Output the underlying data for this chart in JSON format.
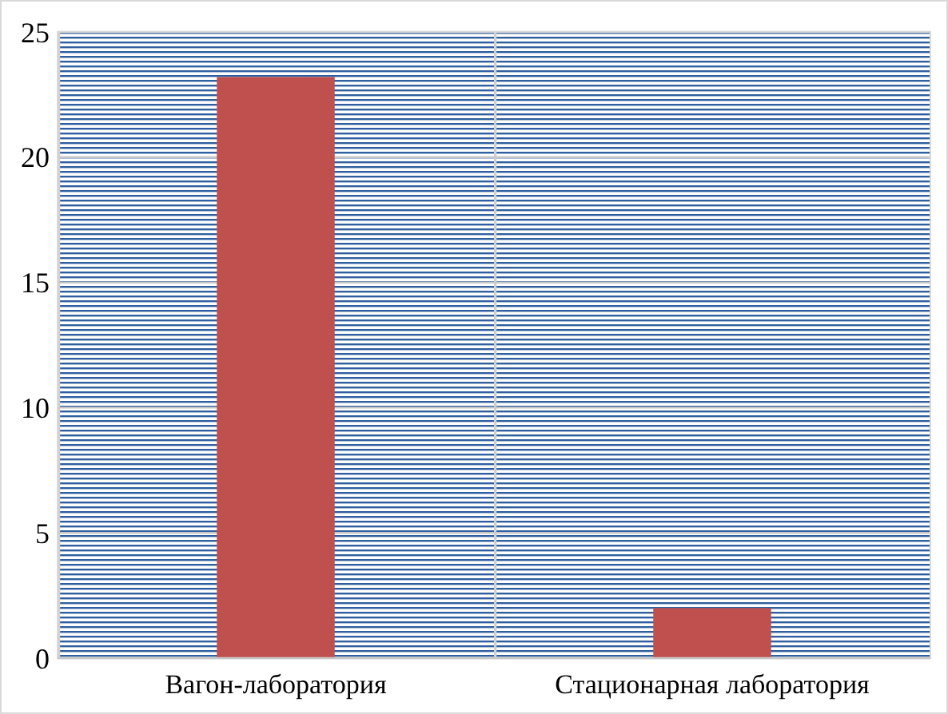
{
  "chart_data": {
    "type": "bar",
    "categories": [
      "Вагон-лаборатория",
      "Стационарная лаборатория"
    ],
    "values": [
      23.2,
      2.0
    ],
    "color": "#c0504d",
    "ylim": [
      0,
      25
    ],
    "yticks": [
      0,
      5,
      10,
      15,
      20,
      25
    ],
    "grid": true
  }
}
